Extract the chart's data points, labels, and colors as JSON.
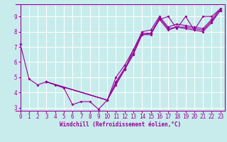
{
  "xlabel": "Windchill (Refroidissement éolien,°C)",
  "bg_color": "#c8ecec",
  "line_color": "#990099",
  "grid_color": "#ffffff",
  "spine_color": "#990099",
  "xlim": [
    -0.5,
    23.5
  ],
  "ylim": [
    2.8,
    9.8
  ],
  "yticks": [
    3,
    4,
    5,
    6,
    7,
    8,
    9
  ],
  "xticks": [
    0,
    1,
    2,
    3,
    4,
    5,
    6,
    7,
    8,
    9,
    10,
    11,
    12,
    13,
    14,
    15,
    16,
    17,
    18,
    19,
    20,
    21,
    22,
    23
  ],
  "lines": [
    {
      "x": [
        0,
        1,
        2,
        3,
        4,
        5,
        6,
        7,
        8,
        9,
        10,
        11,
        12,
        13,
        14,
        15,
        16,
        17,
        18,
        19,
        20,
        21,
        22,
        23
      ],
      "y": [
        7.2,
        4.9,
        4.5,
        4.7,
        4.5,
        4.3,
        3.2,
        3.4,
        3.4,
        2.9,
        3.5,
        4.5,
        5.5,
        6.8,
        7.8,
        7.9,
        8.8,
        9.0,
        8.2,
        9.0,
        8.1,
        9.0,
        9.0,
        9.5
      ]
    },
    {
      "x": [
        3,
        10,
        11,
        12,
        13,
        14,
        15,
        16,
        17,
        18,
        19,
        20,
        21,
        22,
        23
      ],
      "y": [
        4.7,
        3.5,
        4.6,
        5.5,
        6.5,
        7.8,
        7.8,
        8.8,
        8.1,
        8.3,
        8.2,
        8.1,
        8.0,
        8.6,
        9.4
      ]
    },
    {
      "x": [
        3,
        10,
        11,
        12,
        13,
        14,
        15,
        16,
        17,
        18,
        19,
        20,
        21,
        22,
        23
      ],
      "y": [
        4.7,
        3.5,
        4.7,
        5.6,
        6.6,
        7.9,
        7.9,
        8.9,
        8.2,
        8.3,
        8.3,
        8.2,
        8.1,
        8.7,
        9.4
      ]
    },
    {
      "x": [
        3,
        10,
        11,
        12,
        13,
        14,
        15,
        16,
        17,
        18,
        19,
        20,
        21,
        22,
        23
      ],
      "y": [
        4.7,
        3.5,
        5.0,
        5.8,
        6.8,
        8.0,
        8.1,
        9.0,
        8.3,
        8.5,
        8.4,
        8.3,
        8.2,
        8.8,
        9.5
      ]
    }
  ]
}
